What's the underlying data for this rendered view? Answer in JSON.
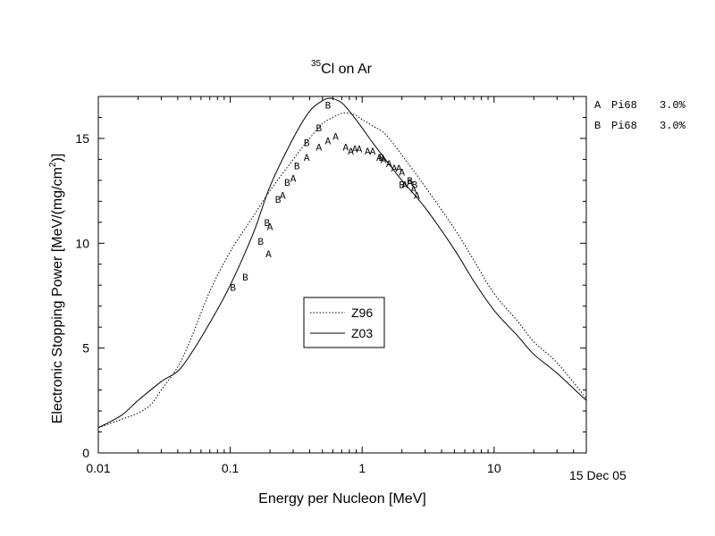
{
  "chart_data": {
    "type": "line",
    "title": {
      "isotope_mass": "35",
      "text": "Cl on Ar"
    },
    "xlabel": "Energy per Nucleon [MeV]",
    "ylabel": {
      "main": "Electronic Stopping Power [MeV/(mg/cm",
      "superscript": "2",
      "tail": ")]"
    },
    "xscale": "log",
    "xlim": [
      0.01,
      50
    ],
    "ylim": [
      0,
      17
    ],
    "x_ticks": [
      0.01,
      0.1,
      1,
      10
    ],
    "x_tick_labels": [
      "0.01",
      "0.1",
      "1",
      "10"
    ],
    "y_ticks": [
      0,
      5,
      10,
      15
    ],
    "y_tick_labels": [
      "0",
      "5",
      "10",
      "15"
    ],
    "date_stamp": "15 Dec 05",
    "right_legend": [
      {
        "marker": "A",
        "text": "Pi68",
        "value": "3.0%"
      },
      {
        "marker": "B",
        "text": "Pi68",
        "value": "3.0%"
      }
    ],
    "legend": {
      "placement": "center",
      "entries": [
        {
          "name": "Z96",
          "style": "dotted"
        },
        {
          "name": "Z03",
          "style": "solid"
        }
      ]
    },
    "series": [
      {
        "name": "Z96",
        "style": "dotted",
        "x": [
          0.01,
          0.015,
          0.02,
          0.025,
          0.03,
          0.04,
          0.05,
          0.07,
          0.1,
          0.15,
          0.2,
          0.3,
          0.4,
          0.5,
          0.6,
          0.7,
          0.8,
          0.9,
          1.0,
          1.2,
          1.5,
          2.0,
          3.0,
          5.0,
          7.0,
          10,
          15,
          20,
          30,
          50
        ],
        "y": [
          1.2,
          1.6,
          1.9,
          2.3,
          3.0,
          4.1,
          5.4,
          7.7,
          9.6,
          11.3,
          12.5,
          14.0,
          15.0,
          15.7,
          16.0,
          16.2,
          16.2,
          16.1,
          15.9,
          15.6,
          15.2,
          14.2,
          12.7,
          10.7,
          9.2,
          7.6,
          6.3,
          5.3,
          4.3,
          2.6
        ]
      },
      {
        "name": "Z03",
        "style": "solid",
        "x": [
          0.01,
          0.015,
          0.02,
          0.03,
          0.04,
          0.05,
          0.07,
          0.1,
          0.15,
          0.2,
          0.3,
          0.4,
          0.5,
          0.55,
          0.6,
          0.7,
          0.8,
          1.0,
          1.2,
          1.5,
          2.0,
          3.0,
          5.0,
          7.0,
          10,
          15,
          20,
          30,
          50
        ],
        "y": [
          1.2,
          1.8,
          2.5,
          3.4,
          3.9,
          4.7,
          6.2,
          8.0,
          10.5,
          12.7,
          15.0,
          16.3,
          16.8,
          16.9,
          16.9,
          16.7,
          16.3,
          15.5,
          14.8,
          14.0,
          13.0,
          11.7,
          9.7,
          8.2,
          6.8,
          5.6,
          4.7,
          3.8,
          2.5
        ]
      }
    ],
    "points": [
      {
        "label": "A",
        "x": 0.195,
        "y": 9.5
      },
      {
        "label": "A",
        "x": 0.2,
        "y": 10.8
      },
      {
        "label": "A",
        "x": 0.25,
        "y": 12.3
      },
      {
        "label": "A",
        "x": 0.3,
        "y": 13.1
      },
      {
        "label": "A",
        "x": 0.38,
        "y": 14.1
      },
      {
        "label": "A",
        "x": 0.47,
        "y": 14.6
      },
      {
        "label": "A",
        "x": 0.55,
        "y": 14.9
      },
      {
        "label": "A",
        "x": 0.63,
        "y": 15.1
      },
      {
        "label": "A",
        "x": 0.75,
        "y": 14.6
      },
      {
        "label": "A",
        "x": 0.82,
        "y": 14.4
      },
      {
        "label": "A",
        "x": 0.88,
        "y": 14.5
      },
      {
        "label": "A",
        "x": 0.95,
        "y": 14.5
      },
      {
        "label": "A",
        "x": 1.1,
        "y": 14.4
      },
      {
        "label": "A",
        "x": 1.2,
        "y": 14.4
      },
      {
        "label": "A",
        "x": 1.35,
        "y": 14.1
      },
      {
        "label": "A",
        "x": 1.45,
        "y": 14.0
      },
      {
        "label": "A",
        "x": 1.6,
        "y": 13.8
      },
      {
        "label": "A",
        "x": 1.75,
        "y": 13.6
      },
      {
        "label": "A",
        "x": 1.9,
        "y": 13.6
      },
      {
        "label": "A",
        "x": 2.0,
        "y": 13.4
      },
      {
        "label": "A",
        "x": 2.1,
        "y": 12.8
      },
      {
        "label": "A",
        "x": 2.3,
        "y": 12.9
      },
      {
        "label": "A",
        "x": 2.45,
        "y": 12.6
      },
      {
        "label": "A",
        "x": 2.6,
        "y": 12.3
      },
      {
        "label": "B",
        "x": 0.105,
        "y": 7.9
      },
      {
        "label": "B",
        "x": 0.13,
        "y": 8.4
      },
      {
        "label": "B",
        "x": 0.17,
        "y": 10.1
      },
      {
        "label": "B",
        "x": 0.19,
        "y": 11.0
      },
      {
        "label": "B",
        "x": 0.23,
        "y": 12.1
      },
      {
        "label": "B",
        "x": 0.27,
        "y": 12.9
      },
      {
        "label": "B",
        "x": 0.32,
        "y": 13.7
      },
      {
        "label": "B",
        "x": 0.38,
        "y": 14.8
      },
      {
        "label": "B",
        "x": 0.47,
        "y": 15.5
      },
      {
        "label": "B",
        "x": 0.55,
        "y": 16.6
      },
      {
        "label": "B",
        "x": 1.4,
        "y": 14.1
      },
      {
        "label": "B",
        "x": 2.0,
        "y": 12.8
      },
      {
        "label": "B",
        "x": 2.3,
        "y": 13.0
      },
      {
        "label": "B",
        "x": 2.5,
        "y": 12.8
      }
    ]
  }
}
